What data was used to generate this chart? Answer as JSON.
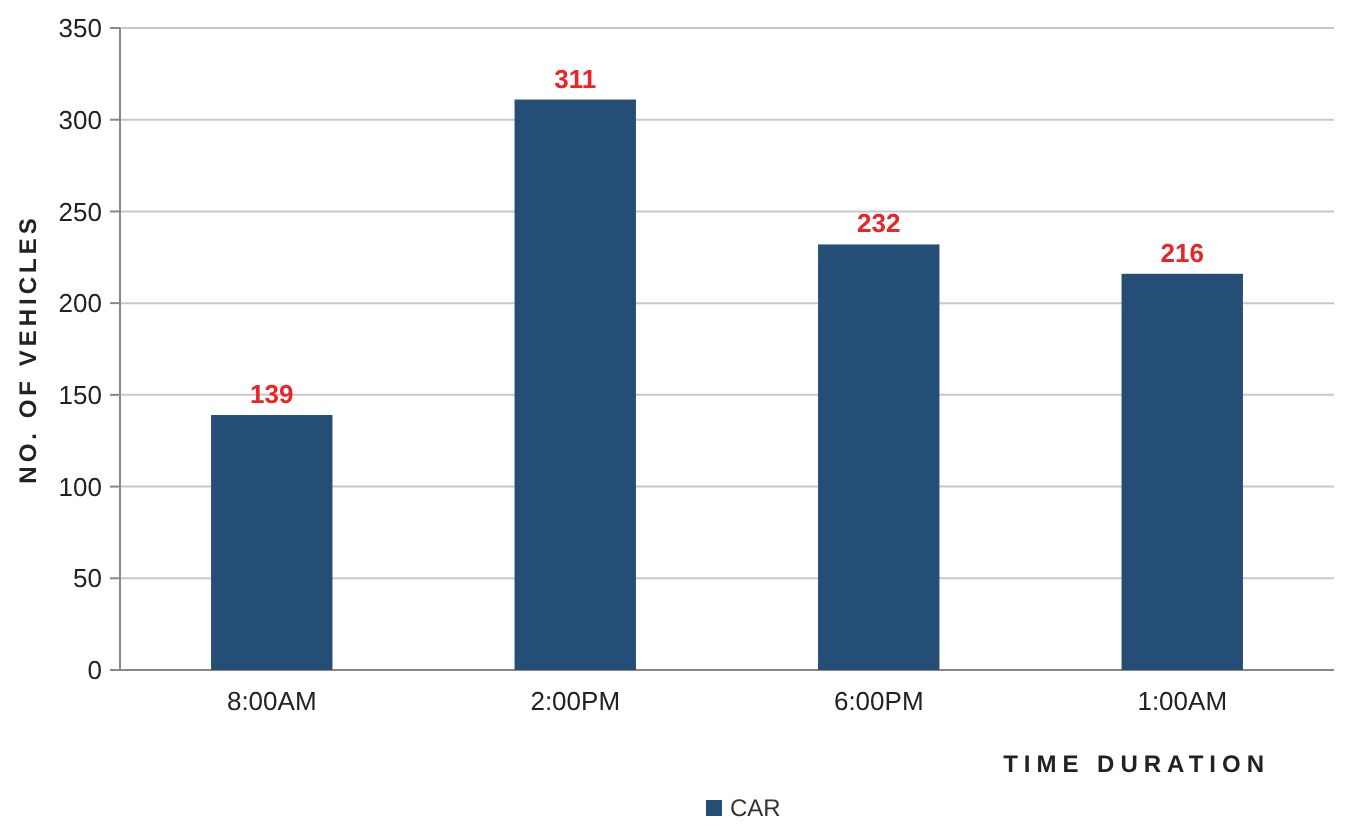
{
  "chart_data": {
    "type": "bar",
    "categories": [
      "8:00AM",
      "2:00PM",
      "6:00PM",
      "1:00AM"
    ],
    "series": [
      {
        "name": "CAR",
        "color": "#254e77",
        "values": [
          139,
          311,
          232,
          216
        ]
      }
    ],
    "xlabel": "TIME DURATION",
    "ylabel": "NO. OF VEHICLES",
    "ylim": [
      0,
      350
    ],
    "yticks": [
      0,
      50,
      100,
      150,
      200,
      250,
      300,
      350
    ],
    "grid": "y",
    "legend": "bottom",
    "data_labels": true
  }
}
